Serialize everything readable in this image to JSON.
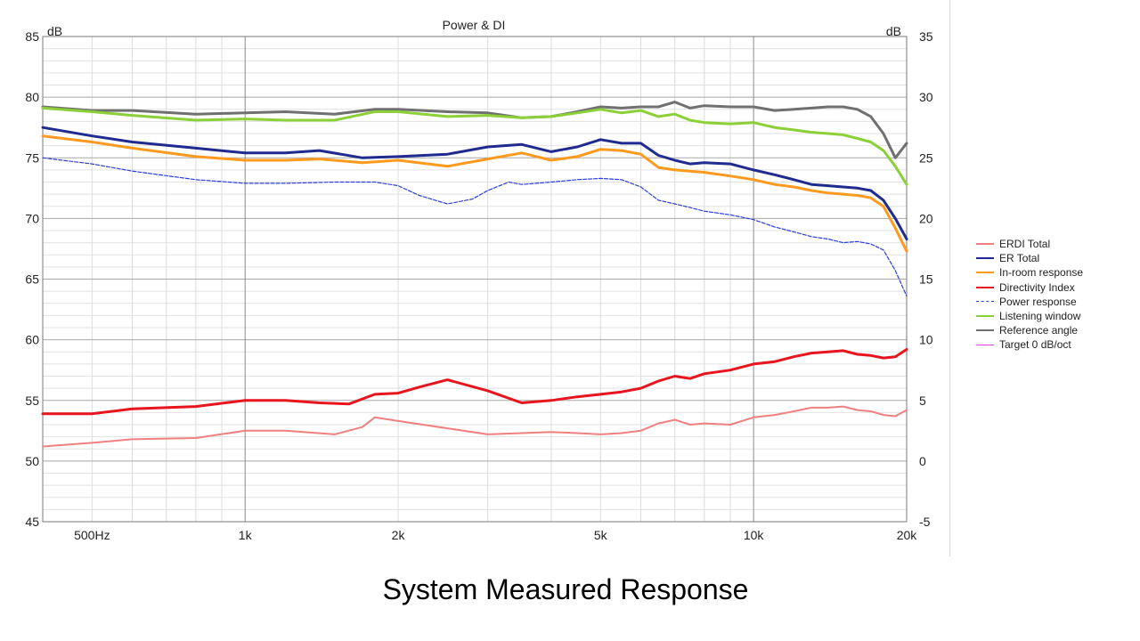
{
  "caption": "System Measured Response",
  "chart_data": {
    "type": "line",
    "title": "Power & DI",
    "x_scale": "log",
    "xlim": [
      400,
      20000
    ],
    "x_ticks": [
      {
        "value": 500,
        "label": "500Hz"
      },
      {
        "value": 1000,
        "label": "1k"
      },
      {
        "value": 2000,
        "label": "2k"
      },
      {
        "value": 5000,
        "label": "5k"
      },
      {
        "value": 10000,
        "label": "10k"
      },
      {
        "value": 20000,
        "label": "20k"
      }
    ],
    "left_axis": {
      "label": "dB",
      "ylim": [
        45,
        85
      ],
      "ticks": [
        45,
        50,
        55,
        60,
        65,
        70,
        75,
        80,
        85
      ]
    },
    "right_axis": {
      "label": "dB",
      "ylim": [
        -5,
        35
      ],
      "ticks": [
        -5,
        0,
        5,
        10,
        15,
        20,
        25,
        30,
        35
      ]
    },
    "grid": true,
    "legend_position": "right",
    "series": [
      {
        "name": "ERDI Total",
        "color": "#f08080",
        "width": 2,
        "dash": "",
        "axis": "right",
        "points": [
          [
            400,
            1.2
          ],
          [
            500,
            1.5
          ],
          [
            600,
            1.8
          ],
          [
            800,
            1.9
          ],
          [
            1000,
            2.5
          ],
          [
            1200,
            2.5
          ],
          [
            1500,
            2.2
          ],
          [
            1700,
            2.8
          ],
          [
            1800,
            3.6
          ],
          [
            2000,
            3.3
          ],
          [
            2500,
            2.7
          ],
          [
            3000,
            2.2
          ],
          [
            3500,
            2.3
          ],
          [
            4000,
            2.4
          ],
          [
            4500,
            2.3
          ],
          [
            5000,
            2.2
          ],
          [
            5500,
            2.3
          ],
          [
            6000,
            2.5
          ],
          [
            6500,
            3.1
          ],
          [
            7000,
            3.4
          ],
          [
            7500,
            3.0
          ],
          [
            8000,
            3.1
          ],
          [
            9000,
            3.0
          ],
          [
            10000,
            3.6
          ],
          [
            11000,
            3.8
          ],
          [
            12000,
            4.1
          ],
          [
            13000,
            4.4
          ],
          [
            14000,
            4.4
          ],
          [
            15000,
            4.5
          ],
          [
            16000,
            4.2
          ],
          [
            17000,
            4.1
          ],
          [
            18000,
            3.8
          ],
          [
            19000,
            3.7
          ],
          [
            20000,
            4.2
          ]
        ]
      },
      {
        "name": "ER Total",
        "color": "#1f2b8f",
        "width": 3,
        "dash": "",
        "axis": "left",
        "points": [
          [
            400,
            77.5
          ],
          [
            500,
            76.8
          ],
          [
            600,
            76.3
          ],
          [
            800,
            75.8
          ],
          [
            1000,
            75.4
          ],
          [
            1200,
            75.4
          ],
          [
            1400,
            75.6
          ],
          [
            1700,
            75.0
          ],
          [
            2000,
            75.1
          ],
          [
            2500,
            75.3
          ],
          [
            3000,
            75.9
          ],
          [
            3500,
            76.1
          ],
          [
            4000,
            75.5
          ],
          [
            4500,
            75.9
          ],
          [
            5000,
            76.5
          ],
          [
            5500,
            76.2
          ],
          [
            6000,
            76.2
          ],
          [
            6500,
            75.2
          ],
          [
            7000,
            74.8
          ],
          [
            7500,
            74.5
          ],
          [
            8000,
            74.6
          ],
          [
            9000,
            74.5
          ],
          [
            10000,
            74.0
          ],
          [
            11000,
            73.6
          ],
          [
            12000,
            73.2
          ],
          [
            13000,
            72.8
          ],
          [
            14000,
            72.7
          ],
          [
            15000,
            72.6
          ],
          [
            16000,
            72.5
          ],
          [
            17000,
            72.3
          ],
          [
            18000,
            71.5
          ],
          [
            19000,
            70.0
          ],
          [
            20000,
            68.3
          ]
        ]
      },
      {
        "name": "In-room response",
        "color": "#ff9a1f",
        "width": 3,
        "dash": "",
        "axis": "left",
        "points": [
          [
            400,
            76.8
          ],
          [
            500,
            76.3
          ],
          [
            600,
            75.8
          ],
          [
            800,
            75.1
          ],
          [
            1000,
            74.8
          ],
          [
            1200,
            74.8
          ],
          [
            1400,
            74.9
          ],
          [
            1700,
            74.6
          ],
          [
            2000,
            74.8
          ],
          [
            2500,
            74.3
          ],
          [
            3000,
            74.9
          ],
          [
            3500,
            75.4
          ],
          [
            4000,
            74.8
          ],
          [
            4500,
            75.1
          ],
          [
            5000,
            75.7
          ],
          [
            5500,
            75.6
          ],
          [
            6000,
            75.3
          ],
          [
            6500,
            74.2
          ],
          [
            7000,
            74.0
          ],
          [
            7500,
            73.9
          ],
          [
            8000,
            73.8
          ],
          [
            9000,
            73.5
          ],
          [
            10000,
            73.2
          ],
          [
            11000,
            72.8
          ],
          [
            12000,
            72.6
          ],
          [
            13000,
            72.3
          ],
          [
            14000,
            72.1
          ],
          [
            15000,
            72.0
          ],
          [
            16000,
            71.9
          ],
          [
            17000,
            71.7
          ],
          [
            18000,
            71.0
          ],
          [
            19000,
            69.2
          ],
          [
            20000,
            67.3
          ]
        ]
      },
      {
        "name": "Directivity Index",
        "color": "#e8141e",
        "width": 3,
        "dash": "",
        "axis": "right",
        "points": [
          [
            400,
            3.9
          ],
          [
            500,
            3.9
          ],
          [
            600,
            4.3
          ],
          [
            800,
            4.5
          ],
          [
            1000,
            5.0
          ],
          [
            1200,
            5.0
          ],
          [
            1400,
            4.8
          ],
          [
            1600,
            4.7
          ],
          [
            1800,
            5.5
          ],
          [
            2000,
            5.6
          ],
          [
            2200,
            6.1
          ],
          [
            2500,
            6.7
          ],
          [
            3000,
            5.8
          ],
          [
            3500,
            4.8
          ],
          [
            4000,
            5.0
          ],
          [
            4500,
            5.3
          ],
          [
            5000,
            5.5
          ],
          [
            5500,
            5.7
          ],
          [
            6000,
            6.0
          ],
          [
            6500,
            6.6
          ],
          [
            7000,
            7.0
          ],
          [
            7500,
            6.8
          ],
          [
            8000,
            7.2
          ],
          [
            9000,
            7.5
          ],
          [
            10000,
            8.0
          ],
          [
            11000,
            8.2
          ],
          [
            12000,
            8.6
          ],
          [
            13000,
            8.9
          ],
          [
            14000,
            9.0
          ],
          [
            15000,
            9.1
          ],
          [
            16000,
            8.8
          ],
          [
            17000,
            8.7
          ],
          [
            18000,
            8.5
          ],
          [
            19000,
            8.6
          ],
          [
            20000,
            9.2
          ]
        ]
      },
      {
        "name": "Power response",
        "color": "#2b3fd6",
        "width": 1.2,
        "dash": "4,2",
        "axis": "left",
        "points": [
          [
            400,
            75.0
          ],
          [
            500,
            74.5
          ],
          [
            600,
            73.9
          ],
          [
            800,
            73.2
          ],
          [
            1000,
            72.9
          ],
          [
            1200,
            72.9
          ],
          [
            1500,
            73.0
          ],
          [
            1800,
            73.0
          ],
          [
            2000,
            72.7
          ],
          [
            2200,
            71.9
          ],
          [
            2500,
            71.2
          ],
          [
            2800,
            71.6
          ],
          [
            3000,
            72.3
          ],
          [
            3300,
            73.0
          ],
          [
            3500,
            72.8
          ],
          [
            4000,
            73.0
          ],
          [
            4500,
            73.2
          ],
          [
            5000,
            73.3
          ],
          [
            5500,
            73.2
          ],
          [
            6000,
            72.6
          ],
          [
            6500,
            71.5
          ],
          [
            7000,
            71.2
          ],
          [
            7500,
            70.9
          ],
          [
            8000,
            70.6
          ],
          [
            9000,
            70.3
          ],
          [
            10000,
            69.9
          ],
          [
            11000,
            69.3
          ],
          [
            12000,
            68.9
          ],
          [
            13000,
            68.5
          ],
          [
            14000,
            68.3
          ],
          [
            15000,
            68.0
          ],
          [
            16000,
            68.1
          ],
          [
            17000,
            67.9
          ],
          [
            18000,
            67.4
          ],
          [
            19000,
            65.7
          ],
          [
            20000,
            63.6
          ]
        ]
      },
      {
        "name": "Listening window",
        "color": "#8cd038",
        "width": 3,
        "dash": "",
        "axis": "left",
        "points": [
          [
            400,
            79.1
          ],
          [
            500,
            78.8
          ],
          [
            600,
            78.5
          ],
          [
            800,
            78.1
          ],
          [
            1000,
            78.2
          ],
          [
            1200,
            78.1
          ],
          [
            1500,
            78.1
          ],
          [
            1800,
            78.8
          ],
          [
            2000,
            78.8
          ],
          [
            2500,
            78.4
          ],
          [
            3000,
            78.5
          ],
          [
            3500,
            78.3
          ],
          [
            4000,
            78.4
          ],
          [
            4500,
            78.7
          ],
          [
            5000,
            79.0
          ],
          [
            5500,
            78.7
          ],
          [
            6000,
            78.9
          ],
          [
            6500,
            78.4
          ],
          [
            7000,
            78.6
          ],
          [
            7500,
            78.1
          ],
          [
            8000,
            77.9
          ],
          [
            9000,
            77.8
          ],
          [
            10000,
            77.9
          ],
          [
            11000,
            77.5
          ],
          [
            12000,
            77.3
          ],
          [
            13000,
            77.1
          ],
          [
            14000,
            77.0
          ],
          [
            15000,
            76.9
          ],
          [
            16000,
            76.6
          ],
          [
            17000,
            76.3
          ],
          [
            18000,
            75.6
          ],
          [
            19000,
            74.3
          ],
          [
            20000,
            72.8
          ]
        ]
      },
      {
        "name": "Reference angle",
        "color": "#707070",
        "width": 3,
        "dash": "",
        "axis": "left",
        "points": [
          [
            400,
            79.2
          ],
          [
            500,
            78.9
          ],
          [
            600,
            78.9
          ],
          [
            800,
            78.6
          ],
          [
            1000,
            78.7
          ],
          [
            1200,
            78.8
          ],
          [
            1500,
            78.6
          ],
          [
            1800,
            79.0
          ],
          [
            2000,
            79.0
          ],
          [
            2500,
            78.8
          ],
          [
            3000,
            78.7
          ],
          [
            3500,
            78.3
          ],
          [
            4000,
            78.4
          ],
          [
            4500,
            78.8
          ],
          [
            5000,
            79.2
          ],
          [
            5500,
            79.1
          ],
          [
            6000,
            79.2
          ],
          [
            6500,
            79.2
          ],
          [
            7000,
            79.6
          ],
          [
            7500,
            79.1
          ],
          [
            8000,
            79.3
          ],
          [
            9000,
            79.2
          ],
          [
            10000,
            79.2
          ],
          [
            11000,
            78.9
          ],
          [
            12000,
            79.0
          ],
          [
            13000,
            79.1
          ],
          [
            14000,
            79.2
          ],
          [
            15000,
            79.2
          ],
          [
            16000,
            79.0
          ],
          [
            17000,
            78.4
          ],
          [
            18000,
            77.0
          ],
          [
            19000,
            75.0
          ],
          [
            20000,
            76.2
          ]
        ]
      },
      {
        "name": "Target 0 dB/oct",
        "color": "#e040e0",
        "width": 1.5,
        "dash": "",
        "axis": "left",
        "points": []
      }
    ]
  }
}
